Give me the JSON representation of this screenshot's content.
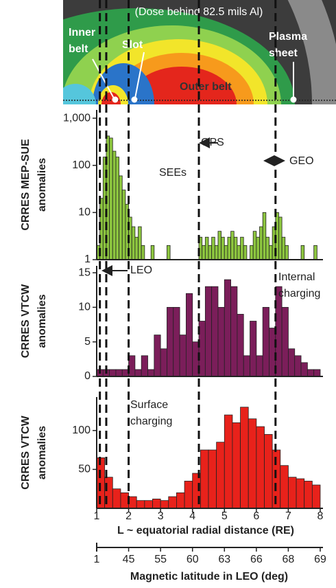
{
  "image": {
    "dose": "(Dose behind 82.5 mils Al)",
    "inner_belt": [
      "Inner",
      "belt"
    ],
    "slot": "Slot",
    "plasma_sheet": [
      "Plasma",
      "sheet"
    ],
    "outer_belt": "Outer belt"
  },
  "chart_data": [
    {
      "type": "histogram",
      "log": true,
      "color": "#8dc63f",
      "ylabel": [
        "CRRES MEP-SUE",
        "anomalies"
      ],
      "xlim": [
        1,
        8
      ],
      "ylim": [
        1,
        1500
      ],
      "yticks": [
        1,
        10,
        100,
        {
          "value": 1000,
          "label": "1,000"
        }
      ],
      "reference_lines": [
        1.1,
        1.3,
        2,
        4.2,
        6.6
      ],
      "annotations": {
        "gps": "GPS",
        "geo": "GEO",
        "sees": "SEEs",
        "leo": "LEO"
      },
      "bins": [
        1,
        1.1,
        1.2,
        1.3,
        1.4,
        1.5,
        1.6,
        1.7,
        1.8,
        1.9,
        2,
        2.1,
        2.2,
        2.3,
        2.4,
        2.5,
        2.6,
        2.7,
        2.8,
        2.9,
        3,
        3.1,
        3.2,
        3.3,
        3.4,
        3.5,
        3.6,
        3.7,
        3.8,
        3.9,
        4,
        4.1,
        4.2,
        4.3,
        4.4,
        4.5,
        4.6,
        4.7,
        4.8,
        4.9,
        5,
        5.1,
        5.2,
        5.3,
        5.4,
        5.5,
        5.6,
        5.7,
        5.8,
        5.9,
        6,
        6.1,
        6.2,
        6.3,
        6.4,
        6.5,
        6.6,
        6.7,
        6.8,
        6.9,
        7,
        7.1,
        7.2,
        7.3,
        7.4,
        7.5,
        7.6,
        7.7,
        7.8,
        7.9,
        8
      ],
      "values": [
        2,
        20,
        150,
        420,
        380,
        200,
        150,
        60,
        30,
        15,
        8,
        5,
        3,
        5,
        2,
        0,
        0,
        2,
        0,
        0,
        0,
        0,
        2,
        0,
        0,
        0,
        0,
        0,
        0,
        0,
        0,
        0,
        3,
        2,
        3,
        2,
        3,
        2,
        4,
        3,
        2,
        3,
        4,
        3,
        2,
        3,
        2,
        0,
        2,
        4,
        3,
        5,
        10,
        3,
        2,
        5,
        10,
        8,
        3,
        2,
        0,
        0,
        0,
        0,
        2,
        0,
        0,
        0,
        2,
        0
      ]
    },
    {
      "type": "histogram",
      "log": false,
      "color": "#7b1e5a",
      "ylabel": [
        "CRRES VTCW",
        "anomalies"
      ],
      "xlim": [
        1,
        8
      ],
      "ylim": [
        0,
        16
      ],
      "yticks": [
        0,
        5,
        10,
        15
      ],
      "annotations": {
        "internal": [
          "Internal",
          "charging"
        ]
      },
      "bins": [
        1,
        1.2,
        1.4,
        1.6,
        1.8,
        2,
        2.2,
        2.4,
        2.6,
        2.8,
        3,
        3.2,
        3.4,
        3.6,
        3.8,
        4,
        4.2,
        4.4,
        4.6,
        4.8,
        5,
        5.2,
        5.4,
        5.6,
        5.8,
        6,
        6.2,
        6.4,
        6.6,
        6.8,
        7,
        7.2,
        7.4,
        7.6,
        7.8,
        8
      ],
      "values": [
        1,
        1,
        1,
        1,
        1,
        3,
        1,
        3,
        1,
        6,
        4,
        10,
        10,
        6,
        12,
        5,
        8,
        13,
        13,
        10,
        14,
        13,
        9,
        3,
        8,
        3,
        10,
        7,
        13,
        10,
        4,
        3,
        2,
        1,
        1
      ]
    },
    {
      "type": "histogram",
      "log": false,
      "color": "#e8221b",
      "ylabel": [
        "CRRES VTCW",
        "anomalies"
      ],
      "xlim": [
        1,
        8
      ],
      "ylim": [
        0,
        143
      ],
      "yticks": [
        50,
        100
      ],
      "annotations": {
        "surface": [
          "Surface",
          "charging"
        ]
      },
      "bins": [
        1,
        1.25,
        1.5,
        1.75,
        2,
        2.25,
        2.5,
        2.75,
        3,
        3.25,
        3.5,
        3.75,
        4,
        4.25,
        4.5,
        4.75,
        5,
        5.25,
        5.5,
        5.75,
        6,
        6.25,
        6.5,
        6.75,
        7,
        7.25,
        7.5,
        7.75,
        8
      ],
      "values": [
        65,
        40,
        25,
        20,
        15,
        10,
        10,
        12,
        10,
        15,
        20,
        35,
        45,
        75,
        75,
        85,
        120,
        110,
        130,
        115,
        105,
        95,
        75,
        55,
        40,
        38,
        35,
        30
      ],
      "xticks": [
        1,
        2,
        3,
        4,
        5,
        6,
        7,
        8
      ],
      "xlabel": "L ~ equatorial radial distance (RE)",
      "x2ticks": [
        1,
        {
          "value": 2,
          "label": "45"
        },
        {
          "value": 3,
          "label": "55"
        },
        {
          "value": 4,
          "label": "60"
        },
        {
          "value": 5,
          "label": "63"
        },
        {
          "value": 6,
          "label": "66"
        },
        {
          "value": 7,
          "label": "68"
        },
        {
          "value": 8,
          "label": "69"
        }
      ],
      "x2label": "Magnetic latitude in LEO (deg)"
    }
  ]
}
